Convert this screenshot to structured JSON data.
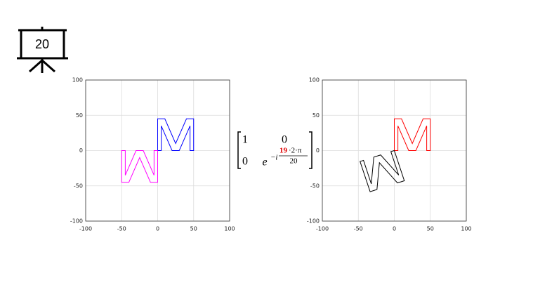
{
  "slide_number": "20",
  "chart_data": [
    {
      "type": "line",
      "xlim": [
        -100,
        100
      ],
      "ylim": [
        -100,
        100
      ],
      "xticks": [
        -100,
        -50,
        0,
        50,
        100
      ],
      "yticks": [
        -100,
        -50,
        0,
        50,
        100
      ],
      "grid": true,
      "series": [
        {
          "color": "#0000ff",
          "x": [
            0,
            0,
            10,
            25,
            40,
            50,
            50,
            45,
            45,
            30,
            20,
            5,
            5,
            0
          ],
          "values": [
            0,
            45,
            45,
            10,
            45,
            45,
            0,
            0,
            35,
            0,
            0,
            35,
            0,
            0
          ]
        },
        {
          "color": "#ff00ff",
          "x": [
            0,
            0,
            -10,
            -25,
            -40,
            -50,
            -50,
            -45,
            -45,
            -30,
            -20,
            -5,
            -5,
            0
          ],
          "values": [
            0,
            -45,
            -45,
            -10,
            -45,
            -45,
            0,
            0,
            -35,
            0,
            0,
            -35,
            0,
            0
          ]
        }
      ]
    },
    {
      "type": "line",
      "xlim": [
        -100,
        100
      ],
      "ylim": [
        -100,
        100
      ],
      "xticks": [
        -100,
        -50,
        0,
        50,
        100
      ],
      "yticks": [
        -100,
        -50,
        0,
        50,
        100
      ],
      "grid": true,
      "series": [
        {
          "color": "#ff0000",
          "x": [
            0,
            0,
            10,
            25,
            40,
            50,
            50,
            45,
            45,
            30,
            20,
            5,
            5,
            0
          ],
          "values": [
            0,
            45,
            45,
            10,
            45,
            45,
            0,
            0,
            35,
            0,
            0,
            35,
            0,
            0
          ]
        },
        {
          "color": "#000000",
          "x": [
            0,
            13.9,
            4.4,
            -20.7,
            -24.1,
            -33.6,
            -47.6,
            -42.8,
            -32.0,
            -28.5,
            -19.0,
            6.1,
            -4.8,
            0
          ],
          "values": [
            0,
            -42.8,
            -45.9,
            -17.2,
            -55.2,
            -58.3,
            -15.5,
            -13.9,
            -47.2,
            -9.3,
            -6.2,
            -34.8,
            -1.5,
            0
          ]
        }
      ]
    }
  ],
  "matrix": {
    "a11": "1",
    "a12": "0",
    "a21": "0",
    "base": "e",
    "exp_prefix": "−i",
    "numerator_highlight": "19",
    "numerator_rest": "·2·π",
    "denominator": "20"
  }
}
